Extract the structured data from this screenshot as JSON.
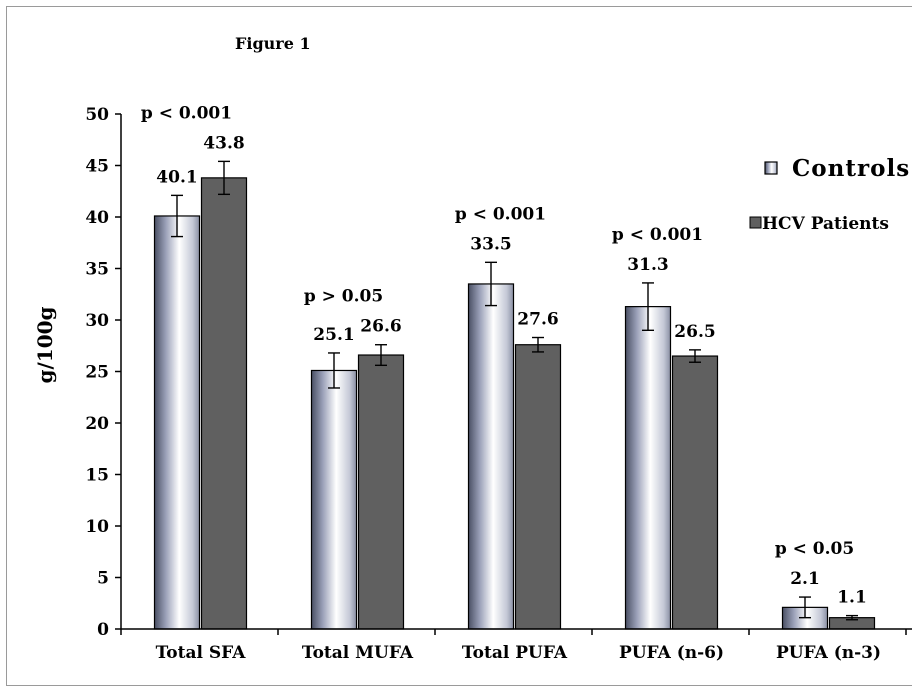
{
  "chart_data": {
    "type": "bar",
    "title": "Figure 1",
    "ylabel": "g/100g",
    "xlabel": "",
    "ylim": [
      0,
      50
    ],
    "yticks": [
      0,
      5,
      10,
      15,
      20,
      25,
      30,
      35,
      40,
      45,
      50
    ],
    "categories": [
      "Total SFA",
      "Total MUFA",
      "Total PUFA",
      "PUFA (n-6)",
      "PUFA (n-3)"
    ],
    "series": [
      {
        "name": "Controls",
        "values": [
          40.1,
          25.1,
          33.5,
          31.3,
          2.1
        ],
        "value_labels": [
          "40.1",
          "25.1",
          "33.5",
          "31.3",
          "2.1"
        ],
        "error": [
          2.0,
          1.7,
          2.1,
          2.3,
          1.0
        ],
        "color": "#d9dde8"
      },
      {
        "name": "HCV Patients",
        "values": [
          43.8,
          26.6,
          27.6,
          26.5,
          1.1
        ],
        "value_labels": [
          "43.8",
          "26.6",
          "27.6",
          "26.5",
          "1.1"
        ],
        "error": [
          1.6,
          1.0,
          0.7,
          0.6,
          0.2
        ],
        "color": "#606060"
      }
    ],
    "p_values": [
      "p < 0.001",
      "p > 0.05",
      "p < 0.001",
      "p < 0.001",
      "p  < 0.05"
    ],
    "legend_placement": "top-right",
    "grid": false
  }
}
